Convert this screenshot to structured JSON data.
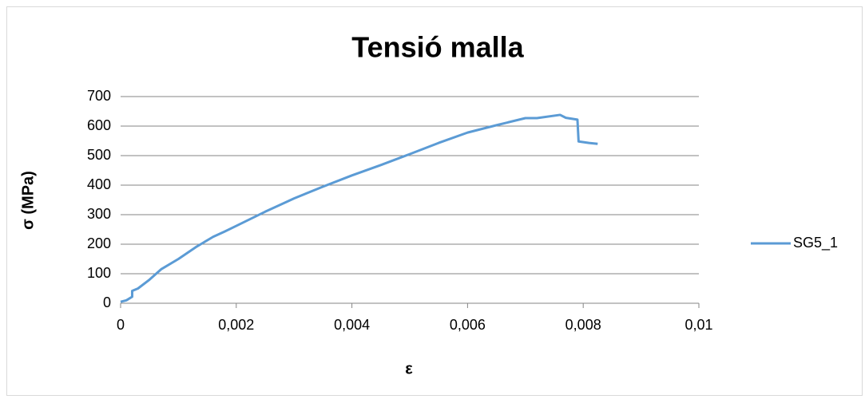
{
  "chart_data": {
    "type": "line",
    "title": "Tensió malla",
    "xlabel": "ε",
    "ylabel": "σ (MPa)",
    "x": [
      0,
      0.0001,
      0.0002,
      0.0002,
      0.0003,
      0.0005,
      0.0007,
      0.001,
      0.0013,
      0.0016,
      0.0018,
      0.002,
      0.0025,
      0.003,
      0.0035,
      0.004,
      0.0045,
      0.005,
      0.0055,
      0.006,
      0.0065,
      0.007,
      0.0072,
      0.0076,
      0.0077,
      0.0079,
      0.00792,
      0.0081,
      0.00825
    ],
    "series": [
      {
        "name": "SG5_1",
        "color": "#5b9bd5",
        "values": [
          5,
          10,
          22,
          42,
          50,
          80,
          115,
          150,
          190,
          225,
          243,
          262,
          310,
          355,
          395,
          433,
          468,
          505,
          543,
          578,
          603,
          627,
          627,
          638,
          628,
          622,
          548,
          543,
          540
        ]
      }
    ],
    "xlim": [
      0,
      0.01
    ],
    "xticks": [
      0,
      {
        "value": 0.002,
        "label": "0,002"
      },
      {
        "value": 0.004,
        "label": "0,004"
      },
      {
        "value": 0.006,
        "label": "0,006"
      },
      {
        "value": 0.008,
        "label": "0,008"
      },
      {
        "value": 0.01,
        "label": "0,01"
      }
    ],
    "ylim": [
      0,
      700
    ],
    "yticks": [
      0,
      100,
      200,
      300,
      400,
      500,
      600,
      700
    ],
    "grid": true,
    "legend": "right"
  }
}
